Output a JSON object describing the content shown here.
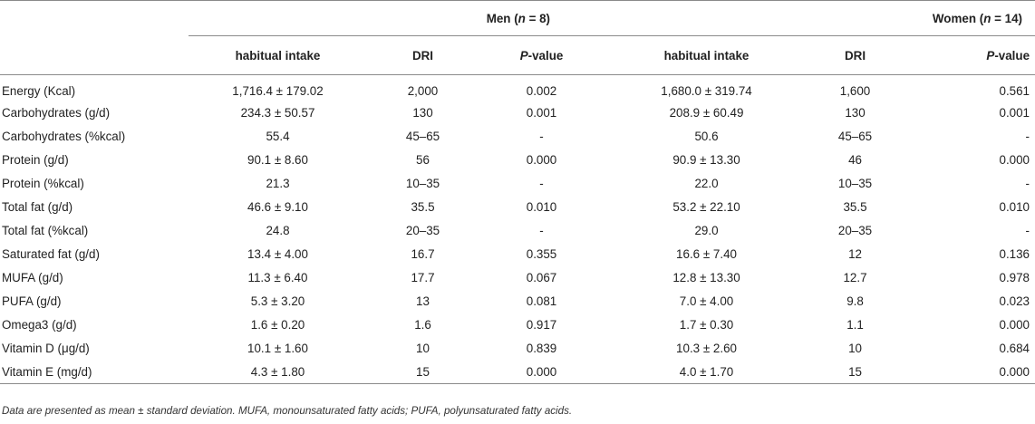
{
  "header": {
    "men_group": "Men (n = 8)",
    "men_prefix": "Men (",
    "men_n": "n",
    "men_suffix": " = 8)",
    "women_prefix": "Women (",
    "women_n": "n",
    "women_suffix": " = 14)",
    "women_group": "Women (n = 14)",
    "columns": [
      "habitual intake",
      "DRI",
      "P-value",
      "habitual intake",
      "DRI",
      "P-value"
    ],
    "pvalue_p": "P",
    "pvalue_rest": "-value"
  },
  "rows": [
    {
      "label": "Energy (Kcal)",
      "men_intake": "1,716.4 ± 179.02",
      "men_dri": "2,000",
      "men_p": "0.002",
      "women_intake": "1,680.0 ± 319.74",
      "women_dri": "1,600",
      "women_p": "0.561"
    },
    {
      "label": "Carbohydrates (g/d)",
      "men_intake": "234.3 ± 50.57",
      "men_dri": "130",
      "men_p": "0.001",
      "women_intake": "208.9 ± 60.49",
      "women_dri": "130",
      "women_p": "0.001"
    },
    {
      "label": "Carbohydrates (%kcal)",
      "men_intake": "55.4",
      "men_dri": "45–65",
      "men_p": "-",
      "women_intake": "50.6",
      "women_dri": "45–65",
      "women_p": "-"
    },
    {
      "label": "Protein (g/d)",
      "men_intake": "90.1 ± 8.60",
      "men_dri": "56",
      "men_p": "0.000",
      "women_intake": "90.9 ± 13.30",
      "women_dri": "46",
      "women_p": "0.000"
    },
    {
      "label": "Protein (%kcal)",
      "men_intake": "21.3",
      "men_dri": "10–35",
      "men_p": "-",
      "women_intake": "22.0",
      "women_dri": "10–35",
      "women_p": "-"
    },
    {
      "label": "Total fat (g/d)",
      "men_intake": "46.6 ± 9.10",
      "men_dri": "35.5",
      "men_p": "0.010",
      "women_intake": "53.2 ± 22.10",
      "women_dri": "35.5",
      "women_p": "0.010"
    },
    {
      "label": "Total fat (%kcal)",
      "men_intake": "24.8",
      "men_dri": "20–35",
      "men_p": "-",
      "women_intake": "29.0",
      "women_dri": "20–35",
      "women_p": "-"
    },
    {
      "label": "Saturated fat (g/d)",
      "men_intake": "13.4 ± 4.00",
      "men_dri": "16.7",
      "men_p": "0.355",
      "women_intake": "16.6 ± 7.40",
      "women_dri": "12",
      "women_p": "0.136"
    },
    {
      "label": "MUFA (g/d)",
      "men_intake": "11.3 ± 6.40",
      "men_dri": "17.7",
      "men_p": "0.067",
      "women_intake": "12.8 ± 13.30",
      "women_dri": "12.7",
      "women_p": "0.978"
    },
    {
      "label": "PUFA (g/d)",
      "men_intake": "5.3 ± 3.20",
      "men_dri": "13",
      "men_p": "0.081",
      "women_intake": "7.0 ± 4.00",
      "women_dri": "9.8",
      "women_p": "0.023"
    },
    {
      "label": "Omega3 (g/d)",
      "men_intake": "1.6 ± 0.20",
      "men_dri": "1.6",
      "men_p": "0.917",
      "women_intake": "1.7 ± 0.30",
      "women_dri": "1.1",
      "women_p": "0.000"
    },
    {
      "label": "Vitamin D (μg/d)",
      "men_intake": "10.1 ± 1.60",
      "men_dri": "10",
      "men_p": "0.839",
      "women_intake": "10.3 ± 2.60",
      "women_dri": "10",
      "women_p": "0.684"
    },
    {
      "label": "Vitamin E (mg/d)",
      "men_intake": "4.3 ± 1.80",
      "men_dri": "15",
      "men_p": "0.000",
      "women_intake": "4.0 ± 1.70",
      "women_dri": "15",
      "women_p": "0.000"
    }
  ],
  "footnote": "Data are presented as mean ± standard deviation. MUFA, monounsaturated fatty acids; PUFA, polyunsaturated fatty acids."
}
